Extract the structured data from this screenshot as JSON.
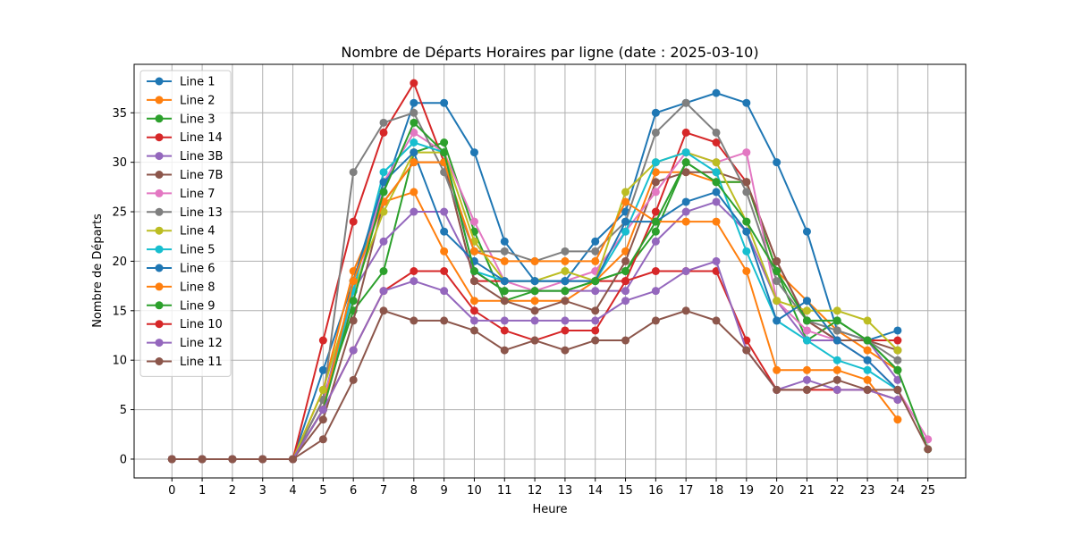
{
  "chart_data": {
    "type": "line",
    "title": "Nombre de Départs Horaires par ligne (date : 2025-03-10)",
    "xlabel": "Heure",
    "ylabel": "Nombre de Départs",
    "x_ticks": [
      0,
      1,
      2,
      3,
      4,
      5,
      6,
      7,
      8,
      9,
      10,
      11,
      12,
      13,
      14,
      15,
      16,
      17,
      18,
      19,
      20,
      21,
      22,
      23,
      24,
      25
    ],
    "y_ticks": [
      0,
      5,
      10,
      15,
      20,
      25,
      30,
      35
    ],
    "xlim": [
      -1.25,
      26.25
    ],
    "ylim": [
      -1.9,
      39.9
    ],
    "grid": true,
    "legend_position": "top-left",
    "series": [
      {
        "name": "Line 1",
        "color": "#1f77b4",
        "x": [
          0,
          1,
          2,
          3,
          4,
          5,
          6,
          7,
          8,
          9,
          10,
          11,
          12,
          13,
          14,
          15,
          16,
          17,
          18,
          19,
          20,
          21,
          22,
          23,
          24
        ],
        "values": [
          0,
          0,
          0,
          0,
          0,
          9,
          18,
          27,
          36,
          36,
          31,
          22,
          18,
          18,
          22,
          25,
          35,
          36,
          37,
          36,
          30,
          23,
          13,
          12,
          13
        ]
      },
      {
        "name": "Line 2",
        "color": "#ff7f0e",
        "x": [
          0,
          1,
          2,
          3,
          4,
          5,
          6,
          7,
          8,
          9,
          10,
          11,
          12,
          13,
          14,
          15,
          16,
          17,
          18,
          19,
          20,
          21,
          22,
          23,
          24
        ],
        "values": [
          0,
          0,
          0,
          0,
          0,
          7,
          19,
          26,
          27,
          21,
          16,
          16,
          16,
          16,
          18,
          21,
          29,
          29,
          28,
          28,
          19,
          16,
          13,
          11,
          9
        ]
      },
      {
        "name": "Line 3",
        "color": "#2ca02c",
        "x": [
          0,
          1,
          2,
          3,
          4,
          5,
          6,
          7,
          8,
          9,
          10,
          11,
          12,
          13,
          14,
          15,
          16,
          17,
          18,
          19,
          20,
          21,
          22,
          23,
          24
        ],
        "values": [
          0,
          0,
          0,
          0,
          0,
          6,
          15,
          19,
          31,
          32,
          23,
          16,
          17,
          17,
          18,
          19,
          23,
          30,
          28,
          28,
          19,
          12,
          14,
          12,
          9
        ]
      },
      {
        "name": "Line 14",
        "color": "#d62728",
        "x": [
          0,
          1,
          2,
          3,
          4,
          5,
          6,
          7,
          8,
          9,
          10,
          11,
          12,
          13,
          14,
          15,
          16,
          17,
          18,
          19,
          20,
          21,
          22,
          23,
          24
        ],
        "values": [
          0,
          0,
          0,
          0,
          0,
          12,
          24,
          33,
          38,
          30,
          18,
          18,
          18,
          18,
          18,
          18,
          25,
          33,
          32,
          28,
          20,
          14,
          12,
          12,
          12
        ]
      },
      {
        "name": "Line 3B",
        "color": "#9467bd",
        "x": [
          0,
          1,
          2,
          3,
          4,
          5,
          6,
          7,
          8,
          9,
          10,
          11,
          12,
          13,
          14,
          15,
          16,
          17,
          18,
          19,
          20,
          21,
          22,
          23,
          24
        ],
        "values": [
          0,
          0,
          0,
          0,
          0,
          6,
          17,
          22,
          25,
          25,
          19,
          17,
          17,
          17,
          17,
          17,
          22,
          25,
          26,
          23,
          16,
          12,
          12,
          12,
          8
        ]
      },
      {
        "name": "Line 7B",
        "color": "#8c564b",
        "x": [
          0,
          1,
          2,
          3,
          4,
          5,
          6,
          7,
          8,
          9,
          10,
          11,
          12,
          13,
          14,
          15,
          16,
          17,
          18,
          19,
          20,
          21,
          22,
          23,
          24
        ],
        "values": [
          0,
          0,
          0,
          0,
          0,
          4,
          14,
          26,
          30,
          30,
          18,
          16,
          15,
          16,
          15,
          20,
          28,
          29,
          29,
          28,
          20,
          14,
          12,
          12,
          11
        ]
      },
      {
        "name": "Line 7",
        "color": "#e377c2",
        "x": [
          0,
          1,
          2,
          3,
          4,
          5,
          6,
          7,
          8,
          9,
          10,
          11,
          12,
          13,
          14,
          15,
          16,
          17,
          18,
          19,
          20,
          21,
          22,
          23,
          24,
          25
        ],
        "values": [
          0,
          0,
          0,
          0,
          0,
          6,
          16,
          28,
          33,
          31,
          24,
          18,
          17,
          18,
          19,
          23,
          27,
          31,
          30,
          31,
          16,
          13,
          12,
          10,
          7,
          2
        ]
      },
      {
        "name": "Line 13",
        "color": "#7f7f7f",
        "x": [
          0,
          1,
          2,
          3,
          4,
          5,
          6,
          7,
          8,
          9,
          10,
          11,
          12,
          13,
          14,
          15,
          16,
          17,
          18,
          19,
          20,
          21,
          22,
          23,
          24
        ],
        "values": [
          0,
          0,
          0,
          0,
          0,
          6,
          29,
          34,
          35,
          29,
          21,
          21,
          20,
          21,
          21,
          24,
          33,
          36,
          33,
          27,
          18,
          14,
          13,
          12,
          10
        ]
      },
      {
        "name": "Line 4",
        "color": "#bcbd22",
        "x": [
          0,
          1,
          2,
          3,
          4,
          5,
          6,
          7,
          8,
          9,
          10,
          11,
          12,
          13,
          14,
          15,
          16,
          17,
          18,
          19,
          20,
          21,
          22,
          23,
          24
        ],
        "values": [
          0,
          0,
          0,
          0,
          0,
          7,
          17,
          25,
          31,
          31,
          22,
          18,
          18,
          19,
          18,
          27,
          30,
          31,
          30,
          24,
          16,
          15,
          15,
          14,
          11
        ]
      },
      {
        "name": "Line 5",
        "color": "#17becf",
        "x": [
          0,
          1,
          2,
          3,
          4,
          5,
          6,
          7,
          8,
          9,
          10,
          11,
          12,
          13,
          14,
          15,
          16,
          17,
          18,
          19,
          20,
          21,
          22,
          23,
          24
        ],
        "values": [
          0,
          0,
          0,
          0,
          0,
          5,
          17,
          29,
          32,
          31,
          19,
          18,
          18,
          18,
          18,
          23,
          30,
          31,
          29,
          21,
          14,
          12,
          10,
          9,
          7
        ]
      },
      {
        "name": "Line 6",
        "color": "#1f77b4",
        "x": [
          0,
          1,
          2,
          3,
          4,
          5,
          6,
          7,
          8,
          9,
          10,
          11,
          12,
          13,
          14,
          15,
          16,
          17,
          18,
          19,
          20,
          21,
          22,
          23,
          24
        ],
        "values": [
          0,
          0,
          0,
          0,
          0,
          5,
          18,
          28,
          31,
          23,
          20,
          18,
          18,
          18,
          18,
          24,
          24,
          26,
          27,
          23,
          14,
          16,
          12,
          10,
          7
        ]
      },
      {
        "name": "Line 8",
        "color": "#ff7f0e",
        "x": [
          0,
          1,
          2,
          3,
          4,
          5,
          6,
          7,
          8,
          9,
          10,
          11,
          12,
          13,
          14,
          15,
          16,
          17,
          18,
          19,
          20,
          21,
          22,
          23,
          24
        ],
        "values": [
          0,
          0,
          0,
          0,
          0,
          5,
          18,
          26,
          30,
          30,
          21,
          20,
          20,
          20,
          20,
          26,
          24,
          24,
          24,
          19,
          9,
          9,
          9,
          8,
          4
        ]
      },
      {
        "name": "Line 9",
        "color": "#2ca02c",
        "x": [
          0,
          1,
          2,
          3,
          4,
          5,
          6,
          7,
          8,
          9,
          10,
          11,
          12,
          13,
          14,
          15,
          16,
          17,
          18,
          19,
          20,
          21,
          22,
          23,
          24,
          25
        ],
        "values": [
          0,
          0,
          0,
          0,
          0,
          5,
          16,
          27,
          34,
          31,
          19,
          17,
          17,
          17,
          18,
          19,
          24,
          30,
          28,
          24,
          19,
          14,
          14,
          12,
          9,
          1
        ]
      },
      {
        "name": "Line 10",
        "color": "#d62728",
        "x": [
          0,
          1,
          2,
          3,
          4,
          5,
          6,
          7,
          8,
          9,
          10,
          11,
          12,
          13,
          14,
          15,
          16,
          17,
          18,
          19,
          20,
          21,
          22,
          23,
          24
        ],
        "values": [
          0,
          0,
          0,
          0,
          0,
          5,
          11,
          17,
          19,
          19,
          15,
          13,
          12,
          13,
          13,
          18,
          19,
          19,
          19,
          12,
          7,
          7,
          7,
          7,
          6
        ]
      },
      {
        "name": "Line 12",
        "color": "#9467bd",
        "x": [
          0,
          1,
          2,
          3,
          4,
          5,
          6,
          7,
          8,
          9,
          10,
          11,
          12,
          13,
          14,
          15,
          16,
          17,
          18,
          19,
          20,
          21,
          22,
          23,
          24
        ],
        "values": [
          0,
          0,
          0,
          0,
          0,
          5,
          11,
          17,
          18,
          17,
          14,
          14,
          14,
          14,
          14,
          16,
          17,
          19,
          20,
          11,
          7,
          8,
          7,
          7,
          6
        ]
      },
      {
        "name": "Line 11",
        "color": "#8c564b",
        "x": [
          0,
          1,
          2,
          3,
          4,
          5,
          6,
          7,
          8,
          9,
          10,
          11,
          12,
          13,
          14,
          15,
          16,
          17,
          18,
          19,
          20,
          21,
          22,
          23,
          24,
          25
        ],
        "values": [
          0,
          0,
          0,
          0,
          0,
          2,
          8,
          15,
          14,
          14,
          13,
          11,
          12,
          11,
          12,
          12,
          14,
          15,
          14,
          11,
          7,
          7,
          8,
          7,
          7,
          1
        ]
      }
    ]
  }
}
